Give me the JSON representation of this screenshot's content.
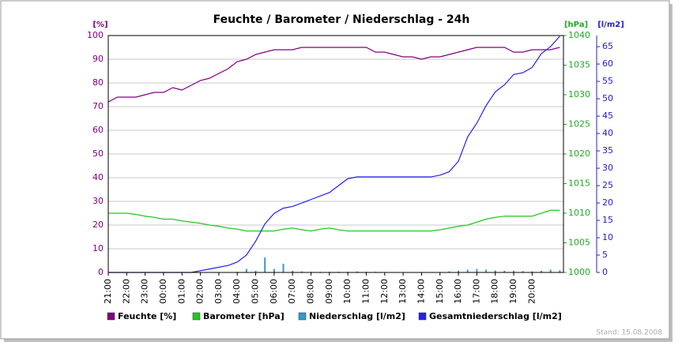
{
  "chart_data": {
    "type": "line",
    "title": "Feuchte / Barometer / Niederschlag - 24h",
    "ylabel": "[%]",
    "y2label": "[hPa]",
    "y3label": "[l/m2]",
    "footer": "Stand: 15.08.2008",
    "xlim": [
      0,
      24.7
    ],
    "xticks": [
      {
        "value": 0,
        "label": "21:00"
      },
      {
        "value": 1,
        "label": "22:00"
      },
      {
        "value": 2,
        "label": "23:00"
      },
      {
        "value": 3,
        "label": "00:00"
      },
      {
        "value": 4,
        "label": "01:00"
      },
      {
        "value": 5,
        "label": "02:00"
      },
      {
        "value": 6,
        "label": "03:00"
      },
      {
        "value": 7,
        "label": "04:00"
      },
      {
        "value": 8,
        "label": "05:00"
      },
      {
        "value": 9,
        "label": "06:00"
      },
      {
        "value": 10,
        "label": "07:00"
      },
      {
        "value": 11,
        "label": "08:00"
      },
      {
        "value": 12,
        "label": "09:00"
      },
      {
        "value": 13,
        "label": "10:00"
      },
      {
        "value": 14,
        "label": "11:00"
      },
      {
        "value": 15,
        "label": "12:00"
      },
      {
        "value": 16,
        "label": "13:00"
      },
      {
        "value": 17,
        "label": "14:00"
      },
      {
        "value": 18,
        "label": "15:00"
      },
      {
        "value": 19,
        "label": "16:00"
      },
      {
        "value": 20,
        "label": "17:00"
      },
      {
        "value": 21,
        "label": "18:00"
      },
      {
        "value": 22,
        "label": "19:00"
      },
      {
        "value": 23,
        "label": "20:00"
      }
    ],
    "ylim": [
      0,
      100
    ],
    "yticks": [
      0,
      10,
      20,
      30,
      40,
      50,
      60,
      70,
      80,
      90,
      100
    ],
    "y2lim": [
      1000,
      1040
    ],
    "y2ticks": [
      1000,
      1005,
      1010,
      1015,
      1020,
      1025,
      1030,
      1035,
      1040
    ],
    "y3lim": [
      0,
      68.2
    ],
    "y3ticks": [
      0,
      5,
      10,
      15,
      20,
      25,
      30,
      35,
      40,
      45,
      50,
      55,
      60,
      65
    ],
    "grid": true,
    "x": [
      0,
      0.5,
      1,
      1.5,
      2,
      2.5,
      3,
      3.5,
      4,
      4.5,
      5,
      5.5,
      6,
      6.5,
      7,
      7.5,
      8,
      8.5,
      9,
      9.5,
      10,
      10.5,
      11,
      11.5,
      12,
      12.5,
      13,
      13.5,
      14,
      14.5,
      15,
      15.5,
      16,
      16.5,
      17,
      17.5,
      18,
      18.5,
      19,
      19.5,
      20,
      20.5,
      21,
      21.5,
      22,
      22.5,
      23,
      23.5,
      24,
      24.5
    ],
    "series": [
      {
        "name": "Feuchte [%]",
        "color": "#800080",
        "axis": "y",
        "values": [
          72,
          74,
          74,
          74,
          75,
          76,
          76,
          78,
          77,
          79,
          81,
          82,
          84,
          86,
          89,
          90,
          92,
          93,
          94,
          94,
          94,
          95,
          95,
          95,
          95,
          95,
          95,
          95,
          95,
          93,
          93,
          92,
          91,
          91,
          90,
          91,
          91,
          92,
          93,
          94,
          95,
          95,
          95,
          95,
          93,
          93,
          94,
          94,
          94,
          95
        ]
      },
      {
        "name": "Barometer [hPa]",
        "color": "#22c822",
        "axis": "y2",
        "values": [
          1010,
          1010,
          1010,
          1009.8,
          1009.5,
          1009.3,
          1009,
          1009,
          1008.7,
          1008.5,
          1008.3,
          1008,
          1007.8,
          1007.5,
          1007.3,
          1007,
          1007,
          1007,
          1007,
          1007.3,
          1007.5,
          1007.2,
          1007,
          1007.3,
          1007.5,
          1007.2,
          1007,
          1007,
          1007,
          1007,
          1007,
          1007,
          1007,
          1007,
          1007,
          1007,
          1007.2,
          1007.5,
          1007.8,
          1008,
          1008.5,
          1009,
          1009.3,
          1009.5,
          1009.5,
          1009.5,
          1009.5,
          1010,
          1010.5,
          1010.5
        ]
      },
      {
        "name": "Niederschlag [l/m2]",
        "color": "#3399cc",
        "axis": "y3",
        "type": "bar",
        "values": [
          0,
          0,
          0,
          0,
          0,
          0,
          0,
          0,
          0,
          0,
          0,
          0,
          0,
          0,
          0.2,
          1,
          0.5,
          4.3,
          1,
          2.5,
          0.5,
          0.3,
          0.2,
          0.2,
          0.2,
          0.2,
          0.2,
          0.3,
          0.2,
          0.2,
          0.1,
          0,
          0,
          0,
          0,
          0,
          0,
          0.3,
          0.5,
          0.8,
          1,
          0.8,
          0.6,
          0.5,
          0.5,
          0.4,
          0.3,
          0.5,
          0.8,
          0.6
        ]
      },
      {
        "name": "Gesamtniederschlag [l/m2]",
        "color": "#2222ee",
        "axis": "y3",
        "values": [
          0,
          0,
          0,
          0,
          0,
          0,
          0,
          0,
          0,
          0,
          0.5,
          1,
          1.5,
          2,
          3,
          5,
          9,
          14,
          17,
          18.5,
          19,
          20,
          21,
          22,
          23,
          25,
          27,
          27.5,
          27.5,
          27.5,
          27.5,
          27.5,
          27.5,
          27.5,
          27.5,
          27.5,
          28,
          29,
          32,
          39,
          43,
          48,
          52,
          54,
          57,
          57.5,
          59,
          63,
          65,
          68
        ]
      }
    ]
  }
}
